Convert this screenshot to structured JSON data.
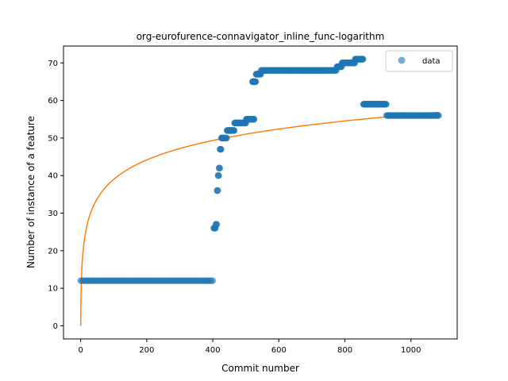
{
  "chart_data": {
    "type": "scatter",
    "title": "org-eurofurence-connavigator_inline_func-logarithm",
    "xlabel": "Commit number",
    "ylabel": "Number of instance of a feature",
    "xlim": [
      -52,
      1140
    ],
    "ylim": [
      -3.5,
      74.5
    ],
    "xticks": [
      0,
      200,
      400,
      600,
      800,
      1000
    ],
    "yticks": [
      0,
      10,
      20,
      30,
      40,
      50,
      60,
      70
    ],
    "legend": {
      "position": "top-right",
      "entries": [
        "data"
      ]
    },
    "grid": false,
    "colors": {
      "data": "#1f77b4",
      "fit": "#ff7f0e"
    },
    "series": [
      {
        "name": "data",
        "kind": "points",
        "segments": [
          {
            "x_start": 0,
            "x_end": 400,
            "y": 12
          },
          {
            "x_start": 403,
            "x_end": 408,
            "y": 26
          },
          {
            "x_start": 409,
            "x_end": 412,
            "y": 27
          },
          {
            "x_start": 413,
            "x_end": 415,
            "y": 36
          },
          {
            "x_start": 416,
            "x_end": 418,
            "y": 40
          },
          {
            "x_start": 419,
            "x_end": 421,
            "y": 42
          },
          {
            "x_start": 422,
            "x_end": 425,
            "y": 47
          },
          {
            "x_start": 426,
            "x_end": 442,
            "y": 50
          },
          {
            "x_start": 443,
            "x_end": 465,
            "y": 52
          },
          {
            "x_start": 466,
            "x_end": 500,
            "y": 54
          },
          {
            "x_start": 501,
            "x_end": 525,
            "y": 55
          },
          {
            "x_start": 520,
            "x_end": 530,
            "y": 65
          },
          {
            "x_start": 531,
            "x_end": 545,
            "y": 67
          },
          {
            "x_start": 546,
            "x_end": 775,
            "y": 68
          },
          {
            "x_start": 776,
            "x_end": 790,
            "y": 69
          },
          {
            "x_start": 791,
            "x_end": 830,
            "y": 70
          },
          {
            "x_start": 831,
            "x_end": 855,
            "y": 71
          },
          {
            "x_start": 856,
            "x_end": 925,
            "y": 59
          },
          {
            "x_start": 926,
            "x_end": 1085,
            "y": 56
          }
        ]
      },
      {
        "name": "",
        "kind": "line",
        "function": "log",
        "coefficients": {
          "a": 7.5,
          "b": 1.8
        },
        "x_range": [
          0,
          1085
        ]
      }
    ]
  }
}
